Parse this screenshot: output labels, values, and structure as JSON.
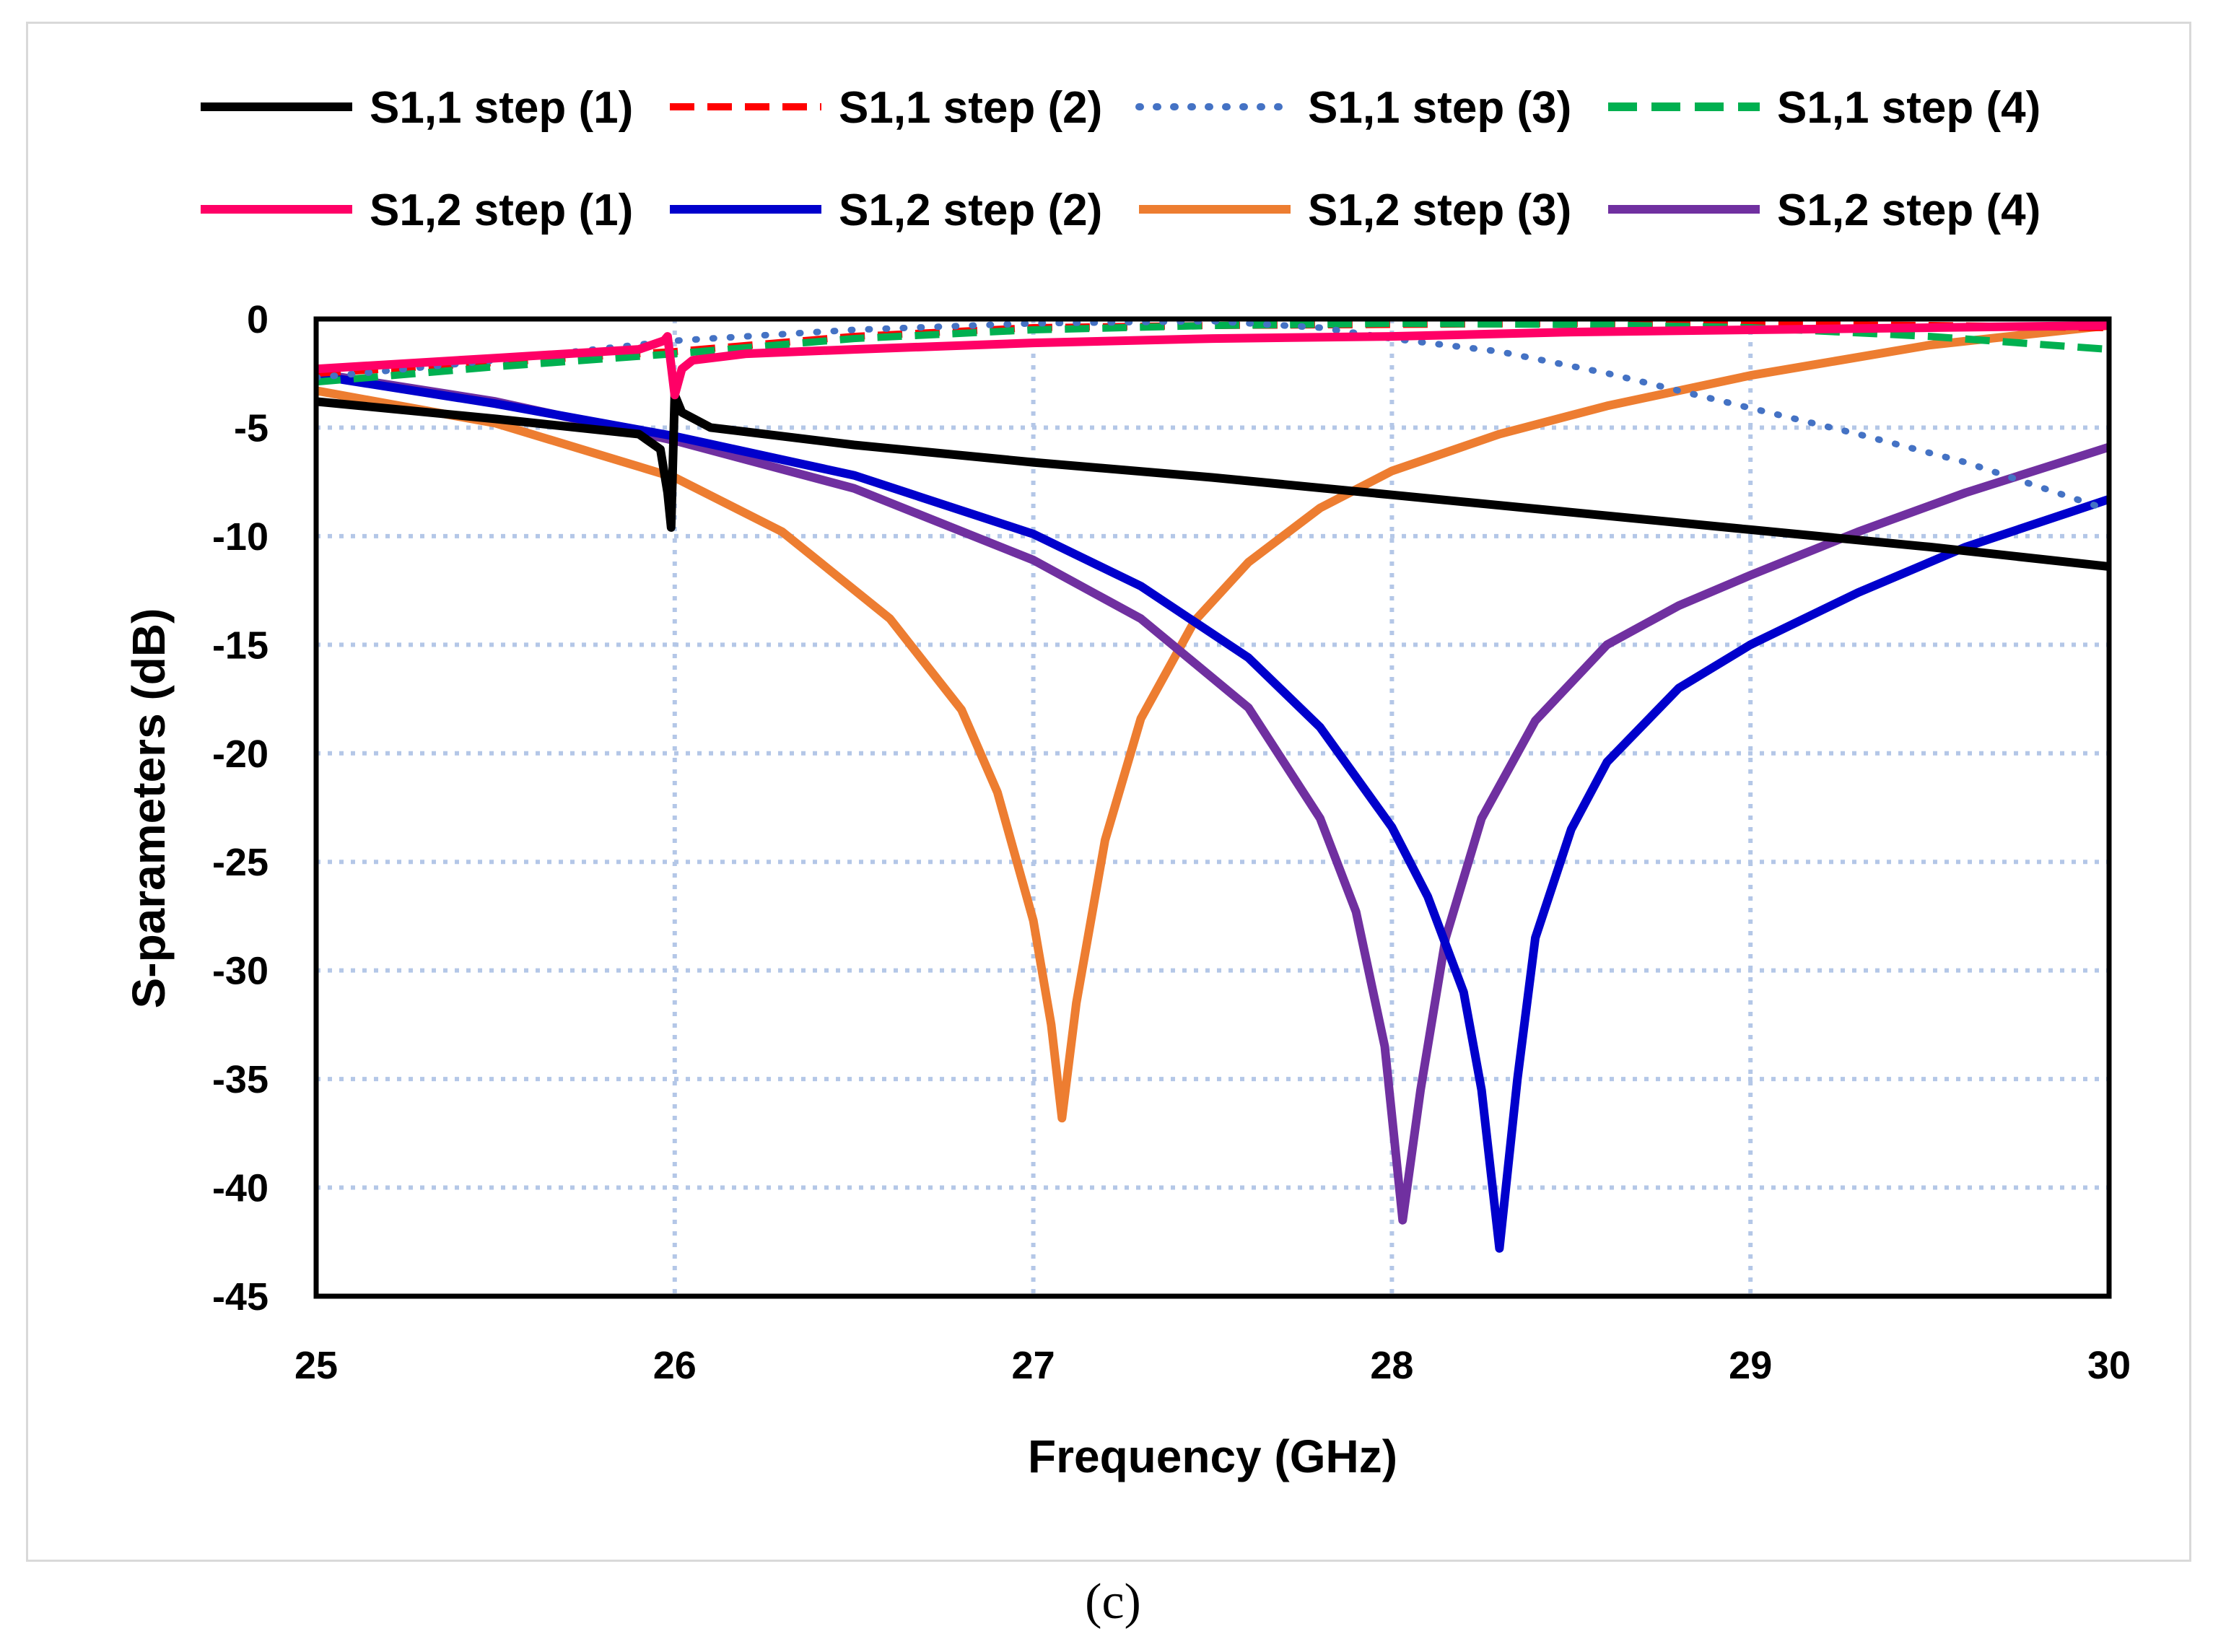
{
  "caption": "(c)",
  "colors": {
    "s11_1": "#000000",
    "s11_2": "#ff0000",
    "s11_3": "#4472c4",
    "s11_4": "#00b050",
    "s12_1": "#ff0066",
    "s12_2": "#0000cc",
    "s12_3": "#ed7d31",
    "s12_4": "#7030a0",
    "grid": "#b4c7e7"
  },
  "chart_data": {
    "type": "line",
    "title": "",
    "xlabel": "Frequency (GHz)",
    "ylabel": "S-parameters (dB)",
    "xlim": [
      25,
      30
    ],
    "ylim": [
      -45,
      0
    ],
    "xticks": [
      "25",
      "26",
      "27",
      "28",
      "29",
      "30"
    ],
    "yticks": [
      "0",
      "-5",
      "-10",
      "-15",
      "-20",
      "-25",
      "-30",
      "-35",
      "-40",
      "-45"
    ],
    "grid": true,
    "legend_position": "top",
    "series": [
      {
        "name": "S1,1 step (1)",
        "style": "solid",
        "color": "#000000",
        "x": [
          25,
          25.5,
          25.9,
          25.96,
          25.98,
          25.99,
          26.0,
          26.02,
          26.1,
          26.5,
          27,
          27.5,
          28,
          28.5,
          29,
          29.5,
          30
        ],
        "y": [
          -3.8,
          -4.6,
          -5.3,
          -6.0,
          -8.0,
          -9.6,
          -3.5,
          -4.3,
          -5.0,
          -5.8,
          -6.6,
          -7.3,
          -8.1,
          -8.9,
          -9.7,
          -10.5,
          -11.4
        ]
      },
      {
        "name": "S1,1 step (2)",
        "style": "dashed",
        "color": "#ff0000",
        "x": [
          25,
          25.5,
          26,
          26.5,
          27,
          27.5,
          28,
          28.5,
          29,
          29.5,
          30
        ],
        "y": [
          -2.5,
          -2.0,
          -1.5,
          -0.8,
          -0.4,
          -0.3,
          -0.25,
          -0.2,
          -0.25,
          -0.3,
          -0.4
        ]
      },
      {
        "name": "S1,1 step (3)",
        "style": "dotted",
        "color": "#4472c4",
        "x": [
          25,
          25.5,
          26,
          26.5,
          27,
          27.5,
          27.8,
          28,
          28.3,
          28.6,
          29,
          29.3,
          29.6,
          29.8,
          30
        ],
        "y": [
          -2.7,
          -1.9,
          -1.0,
          -0.5,
          -0.2,
          -0.1,
          -0.4,
          -0.9,
          -1.5,
          -2.5,
          -4.1,
          -5.3,
          -6.6,
          -7.7,
          -8.8
        ]
      },
      {
        "name": "S1,1 step (4)",
        "style": "dashed",
        "color": "#00b050",
        "x": [
          25,
          25.5,
          26,
          26.5,
          27,
          27.5,
          28,
          28.5,
          29,
          29.5,
          30
        ],
        "y": [
          -2.9,
          -2.2,
          -1.6,
          -0.9,
          -0.5,
          -0.3,
          -0.2,
          -0.25,
          -0.4,
          -0.8,
          -1.4
        ]
      },
      {
        "name": "S1,2 step (1)",
        "style": "solid",
        "color": "#ff0066",
        "x": [
          25,
          25.5,
          25.9,
          25.97,
          25.98,
          26.0,
          26.02,
          26.05,
          26.2,
          26.5,
          27,
          27.5,
          28,
          28.5,
          29,
          29.5,
          30
        ],
        "y": [
          -2.3,
          -1.8,
          -1.4,
          -1.0,
          -0.8,
          -3.5,
          -2.3,
          -1.9,
          -1.6,
          -1.4,
          -1.1,
          -0.9,
          -0.8,
          -0.6,
          -0.5,
          -0.4,
          -0.3
        ]
      },
      {
        "name": "S1,2 step (2)",
        "style": "solid",
        "color": "#0000cc",
        "x": [
          25,
          25.5,
          26,
          26.5,
          27,
          27.3,
          27.6,
          27.8,
          28.0,
          28.1,
          28.2,
          28.25,
          28.3,
          28.35,
          28.4,
          28.5,
          28.6,
          28.8,
          29,
          29.3,
          29.6,
          30
        ],
        "y": [
          -2.6,
          -3.9,
          -5.4,
          -7.2,
          -9.9,
          -12.3,
          -15.6,
          -18.8,
          -23.4,
          -26.6,
          -31.0,
          -35.5,
          -42.8,
          -35.0,
          -28.5,
          -23.5,
          -20.4,
          -17.0,
          -15.0,
          -12.6,
          -10.5,
          -8.3
        ]
      },
      {
        "name": "S1,2 step (3)",
        "style": "solid",
        "color": "#ed7d31",
        "x": [
          25,
          25.5,
          26,
          26.3,
          26.6,
          26.8,
          26.9,
          27.0,
          27.05,
          27.08,
          27.12,
          27.2,
          27.3,
          27.45,
          27.6,
          27.8,
          28,
          28.3,
          28.6,
          29,
          29.5,
          30
        ],
        "y": [
          -3.3,
          -4.8,
          -7.3,
          -9.8,
          -13.8,
          -18.0,
          -21.8,
          -27.7,
          -32.5,
          -36.8,
          -31.5,
          -24.0,
          -18.4,
          -13.9,
          -11.2,
          -8.7,
          -7.0,
          -5.3,
          -4.0,
          -2.6,
          -1.2,
          -0.3
        ]
      },
      {
        "name": "S1,2 step (4)",
        "style": "solid",
        "color": "#7030a0",
        "x": [
          25,
          25.5,
          26,
          26.5,
          27,
          27.3,
          27.6,
          27.8,
          27.9,
          27.98,
          28.03,
          28.08,
          28.15,
          28.25,
          28.4,
          28.6,
          28.8,
          29,
          29.3,
          29.6,
          30
        ],
        "y": [
          -2.5,
          -3.8,
          -5.6,
          -7.8,
          -11.1,
          -13.8,
          -17.9,
          -23.0,
          -27.3,
          -33.5,
          -41.5,
          -35.5,
          -28.5,
          -23.0,
          -18.5,
          -15.0,
          -13.2,
          -11.8,
          -9.8,
          -8.0,
          -5.9
        ]
      }
    ]
  }
}
